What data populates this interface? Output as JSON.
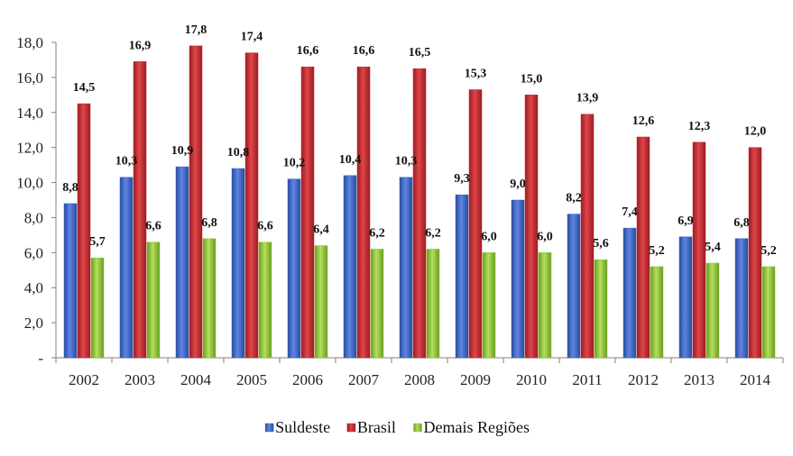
{
  "chart_data": {
    "type": "bar",
    "title": "",
    "xlabel": "",
    "ylabel": "",
    "ylim": [
      0,
      18
    ],
    "yticks": [
      0,
      2,
      4,
      6,
      8,
      10,
      12,
      14,
      16,
      18
    ],
    "ytick_labels": [
      "-",
      "2,0",
      "4,0",
      "6,0",
      "8,0",
      "10,0",
      "12,0",
      "14,0",
      "16,0",
      "18,0"
    ],
    "categories": [
      "2002",
      "2003",
      "2004",
      "2005",
      "2006",
      "2007",
      "2008",
      "2009",
      "2010",
      "2011",
      "2012",
      "2013",
      "2014"
    ],
    "series": [
      {
        "name": "Suldeste",
        "color": "#3a62c4",
        "values": [
          8.8,
          10.3,
          10.9,
          10.8,
          10.2,
          10.4,
          10.3,
          9.3,
          9.0,
          8.2,
          7.4,
          6.9,
          6.8
        ],
        "labels": [
          "8,8",
          "10,3",
          "10,9",
          "10,8",
          "10,2",
          "10,4",
          "10,3",
          "9,3",
          "9,0",
          "8,2",
          "7,4",
          "6,9",
          "6,8"
        ]
      },
      {
        "name": "Brasil",
        "color": "#c3282d",
        "values": [
          14.5,
          16.9,
          17.8,
          17.4,
          16.6,
          16.6,
          16.5,
          15.3,
          15.0,
          13.9,
          12.6,
          12.3,
          12.0
        ],
        "labels": [
          "14,5",
          "16,9",
          "17,8",
          "17,4",
          "16,6",
          "16,6",
          "16,5",
          "15,3",
          "15,0",
          "13,9",
          "12,6",
          "12,3",
          "12,0"
        ]
      },
      {
        "name": "Demais Regiões",
        "color": "#8cc43a",
        "values": [
          5.7,
          6.6,
          6.8,
          6.6,
          6.4,
          6.2,
          6.2,
          6.0,
          6.0,
          5.6,
          5.2,
          5.4,
          5.2
        ],
        "labels": [
          "5,7",
          "6,6",
          "6,8",
          "6,6",
          "6,4",
          "6,2",
          "6,2",
          "6,0",
          "6,0",
          "5,6",
          "5,2",
          "5,4",
          "5,2"
        ]
      }
    ],
    "legend": {
      "position": "bottom"
    },
    "grid": false
  }
}
